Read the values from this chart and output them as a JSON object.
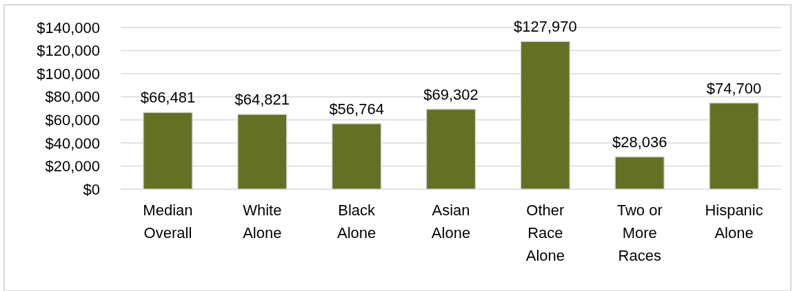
{
  "chart_data": {
    "type": "bar",
    "categories": [
      "Median Overall",
      "White Alone",
      "Black Alone",
      "Asian Alone",
      "Other Race Alone",
      "Two or More Races",
      "Hispanic Alone"
    ],
    "values": [
      66481,
      64821,
      56764,
      69302,
      127970,
      28036,
      74700
    ],
    "color": "#647125",
    "ylim": [
      0,
      140000
    ],
    "yticks": [
      {
        "value": 0,
        "label": "$0"
      },
      {
        "value": 20000,
        "label": "$20,000"
      },
      {
        "value": 40000,
        "label": "$40,000"
      },
      {
        "value": 60000,
        "label": "$60,000"
      },
      {
        "value": 80000,
        "label": "$80,000"
      },
      {
        "value": 100000,
        "label": "$100,000"
      },
      {
        "value": 120000,
        "label": "$120,000"
      },
      {
        "value": 140000,
        "label": "$140,000"
      }
    ],
    "value_labels": [
      "$66,481",
      "$64,821",
      "$56,764",
      "$69,302",
      "$127,970",
      "$28,036",
      "$74,700"
    ],
    "grid": "y"
  }
}
